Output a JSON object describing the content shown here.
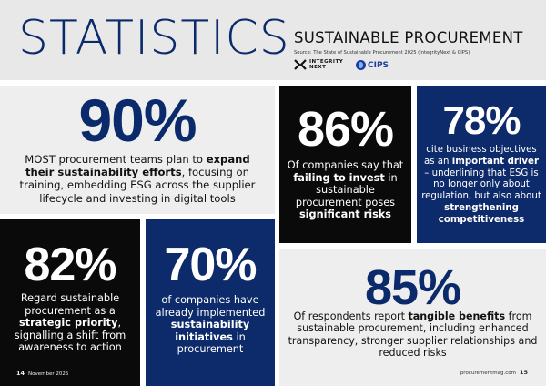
{
  "header": {
    "title": "STATISTICS",
    "subtitle": "SUSTAINABLE PROCUREMENT",
    "source": "Source: The State of Sustainable Procurement 2025 (IntegrityNext & CIPS)",
    "logo_integrity_line1": "INTEGRITY",
    "logo_integrity_line2": "NEXT",
    "logo_cips": "CIPS"
  },
  "stats": {
    "s90": {
      "value": "90%",
      "t1": "MOST procurement teams plan to ",
      "b1": "expand their sustainability efforts",
      "t2": ", focusing on training, embedding ESG across the supplier lifecycle and investing in digital tools"
    },
    "s86": {
      "value": "86%",
      "t1": "Of companies say that ",
      "b1": "failing to invest",
      "t2": " in sustainable procurement poses ",
      "b2": "significant risks"
    },
    "s78": {
      "value": "78%",
      "t1": "cite business objectives as an ",
      "b1": "important driver",
      "t2": " – underlining that ESG is no longer only about regulation, but also about ",
      "b2": "strengthening competitiveness"
    },
    "s82": {
      "value": "82%",
      "t1": "Regard sustainable procurement as a ",
      "b1": "strategic priority",
      "t2": ", signalling a shift from awareness to action"
    },
    "s70": {
      "value": "70%",
      "t1": "of companies have already implemented ",
      "b1": "sustainability initiatives",
      "t2": " in procurement"
    },
    "s85": {
      "value": "85%",
      "t1": "Of respondents report ",
      "b1": "tangible benefits",
      "t2": " from sustainable procurement, including enhanced transparency, stronger supplier relationships and reduced risks"
    }
  },
  "footer": {
    "left_page": "14",
    "left_date": "November 2025",
    "right_site": "procurementmag.com",
    "right_page": "15"
  },
  "colors": {
    "navy": "#0d2a6a",
    "black": "#0a0a0a",
    "light_gray": "#eeeeee"
  }
}
